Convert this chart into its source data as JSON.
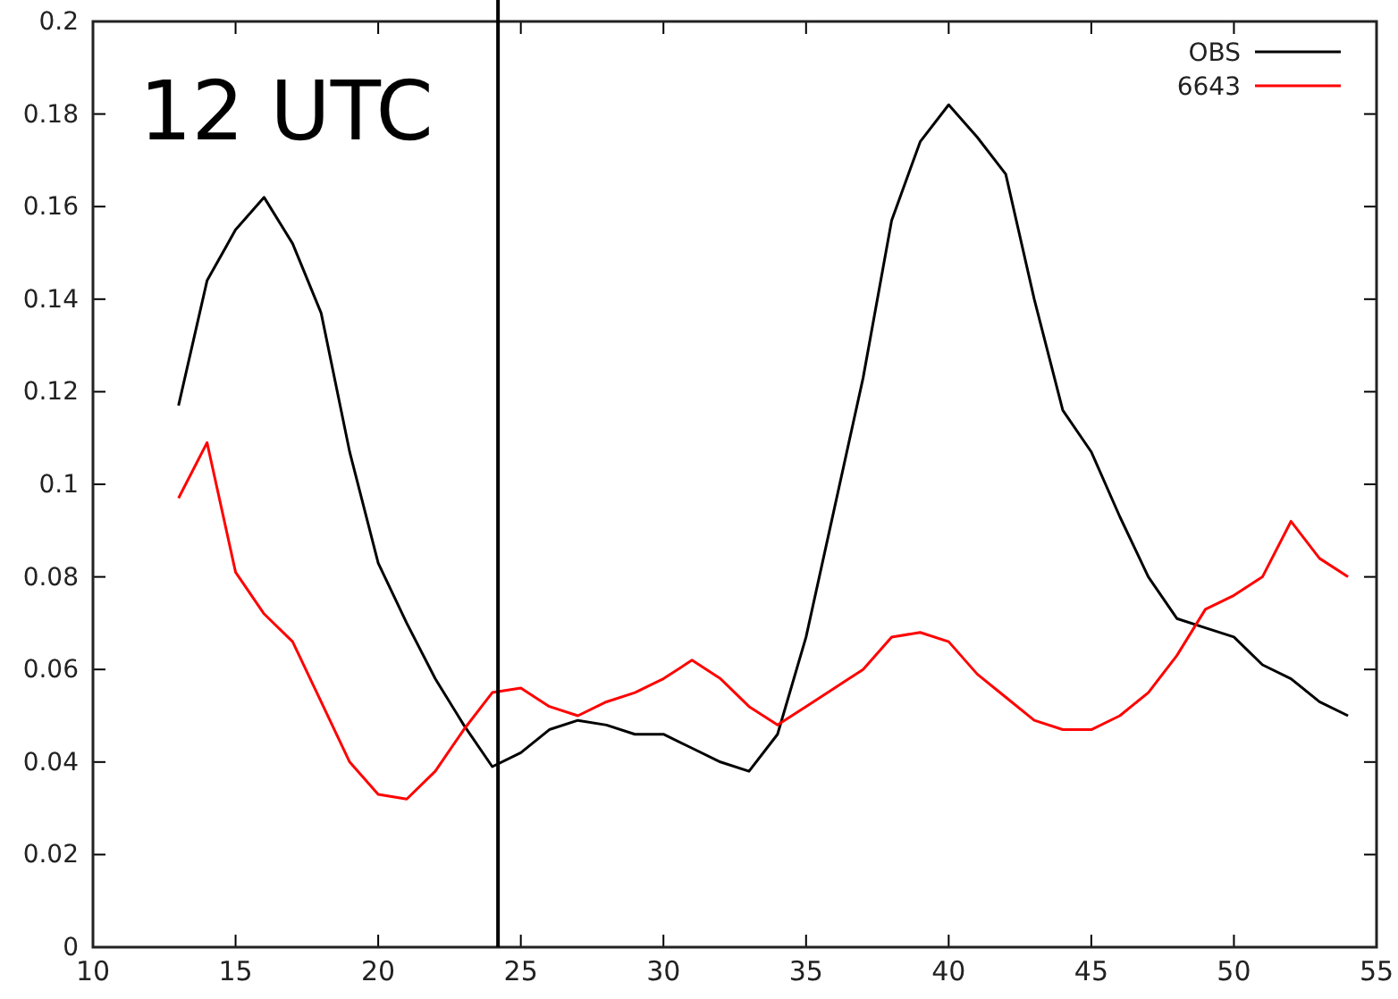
{
  "chart_data": {
    "type": "line",
    "annotations": [
      "12 UTC"
    ],
    "x": [
      13,
      14,
      15,
      16,
      17,
      18,
      19,
      20,
      21,
      22,
      23,
      24,
      25,
      26,
      27,
      28,
      29,
      30,
      31,
      32,
      33,
      34,
      35,
      36,
      37,
      38,
      39,
      40,
      41,
      42,
      43,
      44,
      45,
      46,
      47,
      48,
      49,
      50,
      51,
      52,
      53,
      54
    ],
    "series": [
      {
        "name": "OBS",
        "color": "#000000",
        "values": [
          0.117,
          0.144,
          0.155,
          0.162,
          0.152,
          0.137,
          0.107,
          0.083,
          0.07,
          0.058,
          0.048,
          0.039,
          0.042,
          0.047,
          0.049,
          0.048,
          0.046,
          0.046,
          0.043,
          0.04,
          0.038,
          0.046,
          0.067,
          0.095,
          0.123,
          0.157,
          0.174,
          0.182,
          0.175,
          0.167,
          0.14,
          0.116,
          0.107,
          0.093,
          0.08,
          0.071,
          0.069,
          0.067,
          0.061,
          0.058,
          0.053,
          0.05
        ]
      },
      {
        "name": "6643",
        "color": "#ff0000",
        "values": [
          0.097,
          0.109,
          0.081,
          0.072,
          0.066,
          0.053,
          0.04,
          0.033,
          0.032,
          0.038,
          0.047,
          0.055,
          0.056,
          0.052,
          0.05,
          0.053,
          0.055,
          0.058,
          0.062,
          0.058,
          0.052,
          0.048,
          0.052,
          0.056,
          0.06,
          0.067,
          0.068,
          0.066,
          0.059,
          0.054,
          0.049,
          0.047,
          0.047,
          0.05,
          0.055,
          0.063,
          0.073,
          0.076,
          0.08,
          0.092,
          0.084,
          0.08
        ]
      }
    ],
    "xlim": [
      10,
      55
    ],
    "xticks": [
      10,
      15,
      20,
      25,
      30,
      35,
      40,
      45,
      50,
      55
    ],
    "ylim": [
      0,
      0.2
    ],
    "yticks": [
      0,
      0.02,
      0.04,
      0.06,
      0.08,
      0.1,
      0.12,
      0.14,
      0.16,
      0.18,
      0.2
    ],
    "ref_lines": [
      {
        "axis": "x",
        "value": 24.2,
        "color": "#000000"
      }
    ],
    "grid": false,
    "legend": "top right",
    "line_style": "solid",
    "marker": "none"
  }
}
